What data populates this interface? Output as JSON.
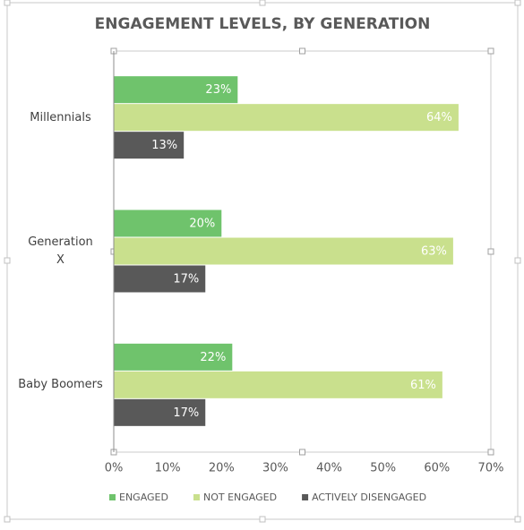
{
  "chart_data": {
    "type": "hbar",
    "title": "ENGAGEMENT LEVELS, BY GENERATION",
    "categories": [
      "Millennials",
      "Generation X",
      "Baby Boomers"
    ],
    "series": [
      {
        "name": "ENGAGED",
        "color": "#6fc36c",
        "values": [
          23,
          20,
          22
        ],
        "value_labels": [
          "23%",
          "20%",
          "22%"
        ]
      },
      {
        "name": "NOT ENGAGED",
        "color": "#c9e08d",
        "values": [
          64,
          63,
          61
        ],
        "value_labels": [
          "64%",
          "63%",
          "61%"
        ]
      },
      {
        "name": "ACTIVELY DISENGAGED",
        "color": "#595959",
        "values": [
          13,
          17,
          17
        ],
        "value_labels": [
          "13%",
          "17%",
          "17%"
        ]
      }
    ],
    "xlim": [
      0,
      70
    ],
    "xticks": [
      {
        "value": 0,
        "label": "0%"
      },
      {
        "value": 10,
        "label": "10%"
      },
      {
        "value": 20,
        "label": "20%"
      },
      {
        "value": 30,
        "label": "30%"
      },
      {
        "value": 40,
        "label": "40%"
      },
      {
        "value": 50,
        "label": "50%"
      },
      {
        "value": 60,
        "label": "60%"
      },
      {
        "value": 70,
        "label": "70%"
      }
    ],
    "grid": false,
    "legend": "bottom"
  }
}
